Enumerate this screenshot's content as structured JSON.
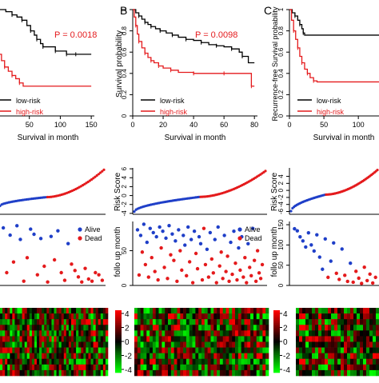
{
  "panels": [
    {
      "letter": "",
      "ylabel": "",
      "ylabel_risk": "",
      "ylabel_fu": "",
      "pvalue": "P = 0.0018"
    },
    {
      "letter": "B",
      "ylabel": "Survival probability",
      "ylabel_risk": "Risk Score",
      "ylabel_fu": "follo up month",
      "pvalue": "P = 0.0098"
    },
    {
      "letter": "C",
      "ylabel": "Recurrence-free Survival probability",
      "ylabel_risk": "Risk Score",
      "ylabel_fu": "follo up month",
      "pvalue": ""
    }
  ],
  "colors": {
    "low": "#000000",
    "high": "#e41a1c",
    "low_risk": "#1f3fc8",
    "high_risk": "#e41a1c",
    "alive": "#1f3fc8",
    "dead": "#e41a1c"
  },
  "chart_data": [
    {
      "type": "line",
      "title": "",
      "xlabel": "Survival in month",
      "ylabel": "",
      "xlim": [
        0,
        155
      ],
      "ylim": [
        0,
        1
      ],
      "xticks": [
        50,
        100,
        150
      ],
      "yticks": [],
      "legend": [
        "low-risk",
        "high-risk"
      ],
      "legend_position": "bottom-left",
      "series": [
        {
          "name": "low-risk",
          "x": [
            0,
            12,
            22,
            30,
            38,
            46,
            52,
            58,
            62,
            68,
            72,
            80,
            92,
            102,
            110,
            118,
            125,
            150
          ],
          "y": [
            1.0,
            0.98,
            0.95,
            0.93,
            0.9,
            0.85,
            0.8,
            0.76,
            0.72,
            0.68,
            0.65,
            0.65,
            0.61,
            0.61,
            0.58,
            0.58,
            0.58,
            0.58
          ]
        },
        {
          "name": "high-risk",
          "x": [
            0,
            5,
            10,
            16,
            22,
            28,
            34,
            40,
            150
          ],
          "y": [
            0.58,
            0.52,
            0.46,
            0.42,
            0.38,
            0.35,
            0.31,
            0.28,
            0.28
          ]
        }
      ]
    },
    {
      "type": "line",
      "title": "",
      "xlabel": "Survival in month",
      "ylabel": "Survival probability",
      "xlim": [
        0,
        82
      ],
      "ylim": [
        0,
        1
      ],
      "xticks": [
        0,
        20,
        40,
        60,
        80
      ],
      "yticks": [
        0,
        0.2,
        0.4,
        0.6,
        0.8,
        1.0
      ],
      "legend": [
        "low-risk",
        "high-risk"
      ],
      "legend_position": "bottom-left",
      "series": [
        {
          "name": "low-risk",
          "x": [
            0,
            2,
            4,
            6,
            8,
            10,
            12,
            15,
            18,
            22,
            26,
            30,
            35,
            40,
            45,
            50,
            55,
            60,
            65,
            70,
            72,
            76,
            80
          ],
          "y": [
            1.0,
            0.97,
            0.94,
            0.91,
            0.88,
            0.86,
            0.84,
            0.82,
            0.8,
            0.78,
            0.76,
            0.74,
            0.72,
            0.71,
            0.69,
            0.67,
            0.66,
            0.65,
            0.63,
            0.6,
            0.56,
            0.5,
            0.5
          ]
        },
        {
          "name": "high-risk",
          "x": [
            0,
            1,
            2,
            3,
            4,
            6,
            8,
            10,
            12,
            14,
            17,
            20,
            25,
            30,
            40,
            50,
            60,
            70,
            78,
            80
          ],
          "y": [
            1.0,
            0.93,
            0.85,
            0.77,
            0.7,
            0.64,
            0.59,
            0.55,
            0.52,
            0.5,
            0.47,
            0.45,
            0.43,
            0.41,
            0.4,
            0.4,
            0.4,
            0.4,
            0.28,
            0.28
          ]
        }
      ]
    },
    {
      "type": "line",
      "title": "",
      "xlabel": "Survival in month",
      "ylabel": "Recurrence-free Survival probability",
      "xlim": [
        0,
        130
      ],
      "ylim": [
        0,
        1
      ],
      "xticks": [
        0,
        50,
        100
      ],
      "yticks": [
        0,
        0.2,
        0.4,
        0.6,
        0.8,
        1.0
      ],
      "legend": [
        "low-risk",
        "high-risk"
      ],
      "legend_position": "bottom-right",
      "series": [
        {
          "name": "low-risk",
          "x": [
            0,
            4,
            8,
            12,
            15,
            18,
            20,
            22,
            130
          ],
          "y": [
            1.0,
            0.97,
            0.94,
            0.9,
            0.86,
            0.82,
            0.78,
            0.76,
            0.76
          ]
        },
        {
          "name": "high-risk",
          "x": [
            0,
            3,
            6,
            9,
            12,
            15,
            18,
            22,
            26,
            30,
            35,
            40,
            130
          ],
          "y": [
            1.0,
            0.9,
            0.8,
            0.72,
            0.64,
            0.56,
            0.5,
            0.44,
            0.4,
            0.36,
            0.33,
            0.32,
            0.32
          ]
        }
      ]
    },
    {
      "type": "scatter",
      "title": "",
      "xlabel": "",
      "ylabel": "",
      "ylim": [
        -4,
        6
      ],
      "yticks": [],
      "n": 60,
      "low_count": 27,
      "start": -2.2,
      "mid": -0.3,
      "end": 5.6
    },
    {
      "type": "scatter",
      "title": "",
      "xlabel": "",
      "ylabel": "Risk Score",
      "ylim": [
        -4.2,
        6.2
      ],
      "yticks": [
        -4,
        -2,
        0,
        2,
        4,
        6
      ],
      "n": 80,
      "low_count": 40,
      "start": -3.6,
      "mid": -0.3,
      "end": 5.5
    },
    {
      "type": "scatter",
      "title": "",
      "xlabel": "",
      "ylabel": "Risk Score",
      "ylim": [
        -6.8,
        6.4
      ],
      "yticks": [
        -6,
        -4,
        -2,
        0,
        2,
        4
      ],
      "n": 60,
      "low_count": 24,
      "start": -5.9,
      "mid": -1.2,
      "end": 5.8
    },
    {
      "type": "scatter",
      "title": "",
      "xlabel": "",
      "ylabel": "",
      "ylim": [
        0,
        150
      ],
      "yticks": [],
      "legend": [
        "Alive",
        "Dead"
      ],
      "legend_position": "top-right",
      "points": [
        [
          2,
          135
        ],
        [
          6,
          30
        ],
        [
          10,
          118
        ],
        [
          14,
          55
        ],
        [
          18,
          140
        ],
        [
          22,
          108
        ],
        [
          26,
          10
        ],
        [
          30,
          65
        ],
        [
          34,
          132
        ],
        [
          38,
          120
        ],
        [
          42,
          25
        ],
        [
          46,
          110
        ],
        [
          50,
          45
        ],
        [
          54,
          8
        ],
        [
          58,
          115
        ],
        [
          62,
          60
        ],
        [
          66,
          128
        ],
        [
          70,
          30
        ],
        [
          74,
          12
        ],
        [
          78,
          98
        ],
        [
          82,
          50
        ],
        [
          86,
          35
        ],
        [
          90,
          20
        ],
        [
          94,
          8
        ],
        [
          98,
          40
        ],
        [
          102,
          15
        ],
        [
          106,
          10
        ],
        [
          110,
          30
        ],
        [
          114,
          25
        ],
        [
          118,
          12
        ]
      ],
      "status": [
        "alive",
        "dead",
        "alive",
        "dead",
        "alive",
        "alive",
        "dead",
        "dead",
        "alive",
        "alive",
        "dead",
        "alive",
        "dead",
        "dead",
        "alive",
        "dead",
        "alive",
        "dead",
        "dead",
        "alive",
        "dead",
        "dead",
        "dead",
        "dead",
        "dead",
        "dead",
        "dead",
        "dead",
        "dead",
        "dead"
      ]
    },
    {
      "type": "scatter",
      "title": "",
      "xlabel": "",
      "ylabel": "follo up month",
      "ylim": [
        0,
        92
      ],
      "yticks": [
        0,
        50
      ],
      "legend": [
        "Alive",
        "Dead"
      ],
      "legend_position": "top-right",
      "points": [
        [
          1,
          80
        ],
        [
          2,
          15
        ],
        [
          3,
          72
        ],
        [
          4,
          48
        ],
        [
          5,
          88
        ],
        [
          6,
          30
        ],
        [
          7,
          62
        ],
        [
          8,
          12
        ],
        [
          9,
          82
        ],
        [
          10,
          40
        ],
        [
          11,
          76
        ],
        [
          12,
          20
        ],
        [
          13,
          70
        ],
        [
          14,
          8
        ],
        [
          15,
          84
        ],
        [
          16,
          54
        ],
        [
          17,
          78
        ],
        [
          18,
          26
        ],
        [
          19,
          68
        ],
        [
          20,
          10
        ],
        [
          21,
          86
        ],
        [
          22,
          44
        ],
        [
          23,
          74
        ],
        [
          24,
          36
        ],
        [
          25,
          64
        ],
        [
          26,
          6
        ],
        [
          27,
          80
        ],
        [
          28,
          50
        ],
        [
          29,
          22
        ],
        [
          30,
          72
        ],
        [
          31,
          58
        ],
        [
          32,
          14
        ],
        [
          33,
          84
        ],
        [
          34,
          34
        ],
        [
          35,
          66
        ],
        [
          36,
          4
        ],
        [
          37,
          78
        ],
        [
          38,
          46
        ],
        [
          39,
          24
        ],
        [
          40,
          70
        ],
        [
          41,
          60
        ],
        [
          42,
          8
        ],
        [
          43,
          82
        ],
        [
          44,
          30
        ],
        [
          45,
          52
        ],
        [
          46,
          12
        ],
        [
          47,
          76
        ],
        [
          48,
          38
        ],
        [
          49,
          18
        ],
        [
          50,
          66
        ],
        [
          51,
          4
        ],
        [
          52,
          84
        ],
        [
          53,
          28
        ],
        [
          54,
          48
        ],
        [
          55,
          10
        ],
        [
          56,
          72
        ],
        [
          57,
          20
        ],
        [
          58,
          42
        ],
        [
          59,
          6
        ],
        [
          60,
          62
        ],
        [
          61,
          16
        ],
        [
          62,
          78
        ],
        [
          63,
          32
        ],
        [
          64,
          8
        ],
        [
          65,
          54
        ],
        [
          66,
          22
        ],
        [
          67,
          70
        ],
        [
          68,
          12
        ],
        [
          69,
          40
        ],
        [
          70,
          4
        ],
        [
          71,
          60
        ],
        [
          72,
          26
        ],
        [
          73,
          14
        ],
        [
          74,
          82
        ],
        [
          75,
          36
        ],
        [
          76,
          6
        ],
        [
          77,
          50
        ],
        [
          78,
          18
        ],
        [
          79,
          10
        ],
        [
          80,
          30
        ]
      ],
      "status": [
        "alive",
        "dead",
        "alive",
        "dead",
        "alive",
        "dead",
        "alive",
        "dead",
        "alive",
        "dead",
        "alive",
        "dead",
        "alive",
        "dead",
        "alive",
        "dead",
        "alive",
        "dead",
        "alive",
        "dead",
        "alive",
        "dead",
        "alive",
        "dead",
        "alive",
        "dead",
        "alive",
        "dead",
        "dead",
        "alive",
        "alive",
        "dead",
        "alive",
        "dead",
        "alive",
        "dead",
        "alive",
        "dead",
        "dead",
        "alive",
        "alive",
        "dead",
        "dead",
        "dead",
        "alive",
        "dead",
        "alive",
        "dead",
        "dead",
        "alive",
        "dead",
        "alive",
        "dead",
        "dead",
        "dead",
        "alive",
        "dead",
        "dead",
        "dead",
        "alive",
        "dead",
        "alive",
        "dead",
        "dead",
        "alive",
        "dead",
        "alive",
        "dead",
        "dead",
        "dead",
        "alive",
        "dead",
        "dead",
        "alive",
        "dead",
        "dead",
        "dead",
        "dead",
        "dead",
        "dead"
      ]
    },
    {
      "type": "scatter",
      "title": "",
      "xlabel": "",
      "ylabel": "follo up month",
      "ylim": [
        0,
        158
      ],
      "yticks": [
        0,
        50,
        100,
        150
      ],
      "points": [
        [
          2,
          140
        ],
        [
          5,
          135
        ],
        [
          8,
          120
        ],
        [
          11,
          110
        ],
        [
          14,
          95
        ],
        [
          17,
          130
        ],
        [
          20,
          100
        ],
        [
          23,
          85
        ],
        [
          26,
          125
        ],
        [
          29,
          70
        ],
        [
          32,
          40
        ],
        [
          35,
          115
        ],
        [
          38,
          20
        ],
        [
          41,
          60
        ],
        [
          44,
          105
        ],
        [
          47,
          30
        ],
        [
          50,
          15
        ],
        [
          53,
          90
        ],
        [
          56,
          25
        ],
        [
          59,
          10
        ],
        [
          62,
          55
        ],
        [
          65,
          8
        ],
        [
          68,
          35
        ],
        [
          71,
          18
        ],
        [
          74,
          5
        ],
        [
          77,
          45
        ],
        [
          80,
          12
        ],
        [
          83,
          28
        ],
        [
          86,
          6
        ],
        [
          89,
          20
        ]
      ],
      "status": [
        "alive",
        "alive",
        "alive",
        "alive",
        "alive",
        "alive",
        "alive",
        "alive",
        "alive",
        "alive",
        "alive",
        "alive",
        "dead",
        "alive",
        "alive",
        "dead",
        "dead",
        "alive",
        "dead",
        "dead",
        "alive",
        "dead",
        "dead",
        "dead",
        "dead",
        "dead",
        "dead",
        "dead",
        "dead",
        "dead"
      ]
    },
    {
      "type": "heatmap",
      "title": "",
      "rows": 12,
      "cols": 44,
      "seed": 7
    },
    {
      "type": "heatmap",
      "title": "",
      "legend": "colorbar",
      "ticks": [
        4,
        2,
        0,
        -2,
        -4
      ],
      "range": [
        -4,
        4
      ],
      "rows": 12,
      "cols": 44,
      "seed": 13
    },
    {
      "type": "heatmap",
      "title": "",
      "legend": "colorbar",
      "ticks": [
        4,
        2,
        0,
        -2,
        -4
      ],
      "range": [
        -4,
        4
      ],
      "rows": 12,
      "cols": 26,
      "seed": 29
    }
  ]
}
